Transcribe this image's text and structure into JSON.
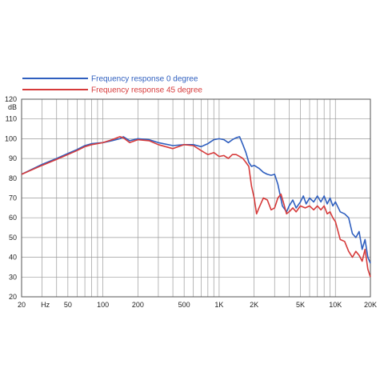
{
  "chart_data": {
    "type": "line",
    "xscale": "log",
    "xlim": [
      20,
      20000
    ],
    "ylim": [
      20,
      120
    ],
    "ylabel": "dB",
    "xlabel": "Hz",
    "grid": true,
    "legend_position": "top-left",
    "x_ticks": [
      {
        "value": 20,
        "label": "20"
      },
      {
        "value": 50,
        "label": "50"
      },
      {
        "value": 100,
        "label": "100"
      },
      {
        "value": 200,
        "label": "200"
      },
      {
        "value": 500,
        "label": "500"
      },
      {
        "value": 1000,
        "label": "1K"
      },
      {
        "value": 2000,
        "label": "2K"
      },
      {
        "value": 5000,
        "label": "5K"
      },
      {
        "value": 10000,
        "label": "10K"
      },
      {
        "value": 20000,
        "label": "20K"
      }
    ],
    "y_ticks": [
      20,
      30,
      40,
      50,
      60,
      70,
      80,
      90,
      100,
      110,
      120
    ],
    "series": [
      {
        "name": "Frequency response 0 degree",
        "color": "#2f5fbf",
        "points": [
          [
            20,
            82
          ],
          [
            30,
            87
          ],
          [
            40,
            90
          ],
          [
            50,
            92.5
          ],
          [
            60,
            94.5
          ],
          [
            70,
            96.5
          ],
          [
            80,
            97.5
          ],
          [
            100,
            98
          ],
          [
            120,
            99
          ],
          [
            140,
            100
          ],
          [
            150,
            101
          ],
          [
            170,
            99
          ],
          [
            200,
            100
          ],
          [
            250,
            99.5
          ],
          [
            300,
            98
          ],
          [
            400,
            96.5
          ],
          [
            500,
            97
          ],
          [
            600,
            97
          ],
          [
            700,
            96
          ],
          [
            800,
            97.5
          ],
          [
            900,
            99.5
          ],
          [
            1000,
            100
          ],
          [
            1100,
            99.5
          ],
          [
            1200,
            98
          ],
          [
            1300,
            99.5
          ],
          [
            1400,
            100.5
          ],
          [
            1500,
            101
          ],
          [
            1600,
            97
          ],
          [
            1700,
            93
          ],
          [
            1800,
            88
          ],
          [
            1900,
            86
          ],
          [
            2000,
            86.5
          ],
          [
            2200,
            85
          ],
          [
            2400,
            83
          ],
          [
            2600,
            82
          ],
          [
            2800,
            81.5
          ],
          [
            3000,
            82
          ],
          [
            3200,
            77
          ],
          [
            3500,
            66
          ],
          [
            3800,
            63
          ],
          [
            4000,
            66
          ],
          [
            4300,
            69
          ],
          [
            4600,
            65
          ],
          [
            5000,
            68
          ],
          [
            5300,
            71
          ],
          [
            5600,
            67
          ],
          [
            6000,
            70
          ],
          [
            6500,
            68
          ],
          [
            7000,
            71
          ],
          [
            7500,
            68
          ],
          [
            8000,
            71
          ],
          [
            8500,
            67
          ],
          [
            9000,
            70
          ],
          [
            9500,
            66
          ],
          [
            10000,
            68
          ],
          [
            11000,
            63
          ],
          [
            12000,
            62
          ],
          [
            13000,
            60
          ],
          [
            14000,
            52
          ],
          [
            15000,
            50
          ],
          [
            16000,
            53
          ],
          [
            17000,
            44
          ],
          [
            18000,
            49
          ],
          [
            19000,
            40
          ],
          [
            20000,
            37
          ]
        ]
      },
      {
        "name": "Frequency response 45 degree",
        "color": "#d63a3a",
        "points": [
          [
            20,
            82
          ],
          [
            30,
            86.5
          ],
          [
            40,
            89.5
          ],
          [
            50,
            92
          ],
          [
            60,
            94
          ],
          [
            70,
            96
          ],
          [
            80,
            97
          ],
          [
            100,
            98
          ],
          [
            120,
            99.5
          ],
          [
            140,
            101
          ],
          [
            150,
            100.5
          ],
          [
            170,
            98
          ],
          [
            200,
            99.5
          ],
          [
            250,
            99
          ],
          [
            300,
            97
          ],
          [
            400,
            95
          ],
          [
            500,
            97
          ],
          [
            600,
            96.5
          ],
          [
            700,
            94
          ],
          [
            800,
            92
          ],
          [
            900,
            93
          ],
          [
            1000,
            91
          ],
          [
            1100,
            91.5
          ],
          [
            1200,
            90
          ],
          [
            1300,
            92
          ],
          [
            1400,
            92
          ],
          [
            1500,
            91
          ],
          [
            1600,
            90
          ],
          [
            1700,
            88
          ],
          [
            1800,
            86
          ],
          [
            1900,
            76
          ],
          [
            2000,
            70
          ],
          [
            2100,
            62
          ],
          [
            2200,
            65
          ],
          [
            2400,
            70
          ],
          [
            2600,
            69
          ],
          [
            2800,
            64
          ],
          [
            3000,
            65
          ],
          [
            3200,
            70
          ],
          [
            3400,
            72
          ],
          [
            3600,
            67
          ],
          [
            3800,
            62
          ],
          [
            4000,
            63
          ],
          [
            4300,
            65
          ],
          [
            4600,
            63
          ],
          [
            5000,
            66
          ],
          [
            5500,
            65
          ],
          [
            6000,
            66
          ],
          [
            6500,
            64
          ],
          [
            7000,
            66
          ],
          [
            7500,
            64
          ],
          [
            8000,
            66
          ],
          [
            8500,
            62
          ],
          [
            9000,
            63
          ],
          [
            9500,
            60
          ],
          [
            10000,
            58
          ],
          [
            11000,
            49
          ],
          [
            12000,
            48
          ],
          [
            13000,
            43
          ],
          [
            14000,
            40
          ],
          [
            15000,
            43
          ],
          [
            16000,
            41
          ],
          [
            17000,
            38
          ],
          [
            18000,
            44
          ],
          [
            19000,
            34
          ],
          [
            20000,
            30
          ]
        ]
      }
    ]
  }
}
